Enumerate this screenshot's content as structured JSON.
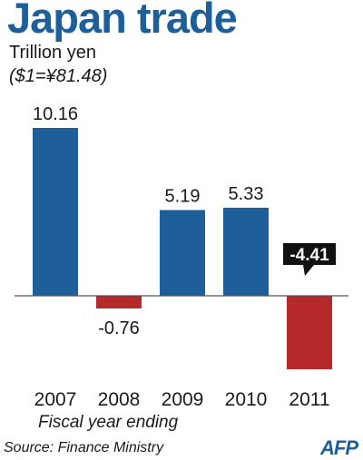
{
  "header": {
    "title": "Japan trade",
    "unit": "Trillion yen",
    "rate": "($1=¥81.48)"
  },
  "footer": {
    "xlabel": "Fiscal year ending",
    "source": "Source: Finance Ministry",
    "logo": "AFP"
  },
  "colors": {
    "positive": "#1f5f99",
    "negative": "#b5292b",
    "highlight_label_bg": "#111111",
    "highlight_label_text": "#ffffff",
    "baseline": "#555555"
  },
  "chart_data": {
    "type": "bar",
    "title": "Japan trade",
    "ylabel": "Trillion yen",
    "xlabel": "Fiscal year ending",
    "categories": [
      "2007",
      "2008",
      "2009",
      "2010",
      "2011"
    ],
    "values": [
      10.16,
      -0.76,
      5.19,
      5.33,
      -4.41
    ],
    "data_labels": [
      "10.16",
      "-0.76",
      "5.19",
      "5.33",
      "-4.41"
    ],
    "highlighted_category": "2011",
    "ylim": [
      -4.41,
      10.16
    ],
    "grid": false,
    "legend": "none"
  }
}
